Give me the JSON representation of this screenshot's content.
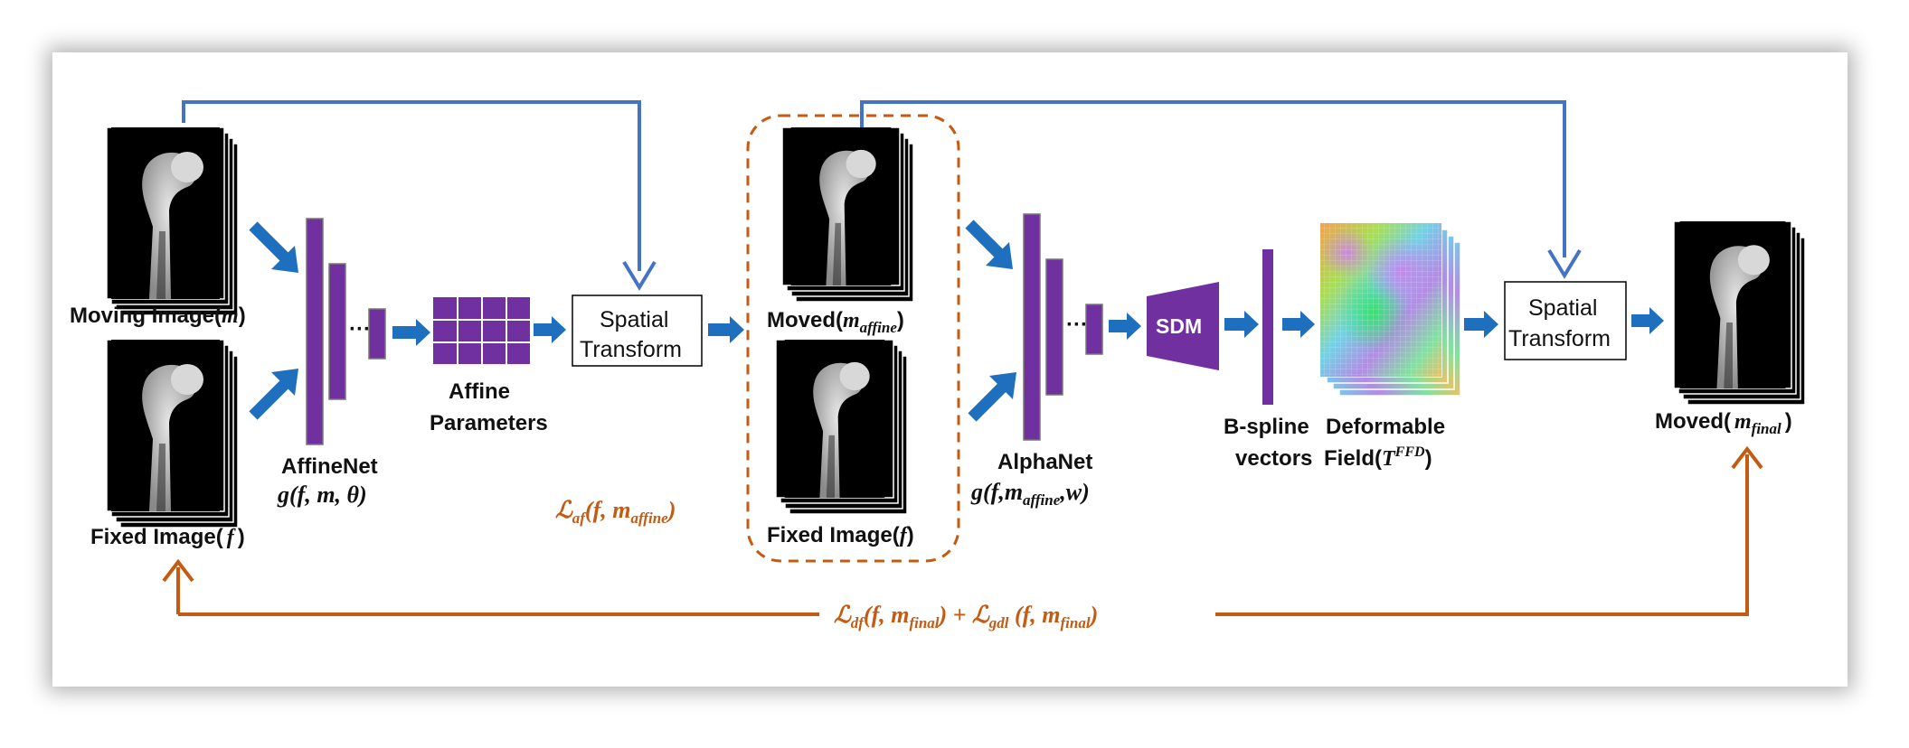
{
  "labels": {
    "moving_image": "Moving Image(",
    "moving_var": "m",
    "fixed_image": "Fixed Image(",
    "fixed_var": "f",
    "affinenet": "AffineNet",
    "affinenet_fn": "g(f, m, θ)",
    "affine_params_line1": "Affine",
    "affine_params_line2": "Parameters",
    "spatial_transform_line1": "Spatial",
    "spatial_transform_line2": "Transform",
    "moved_affine": "Moved(",
    "moved_affine_var": "m",
    "moved_affine_sub": "affine",
    "fixed_image_2": "Fixed Image(",
    "fixed_var_2": "f",
    "alphanet": "AlphaNet",
    "alphanet_fn_prefix": "g(f,m",
    "alphanet_fn_sub": "affine",
    "alphanet_fn_suffix": ",w)",
    "sdm": "SDM",
    "bspline_line1": "B-spline",
    "bspline_line2": "vectors",
    "deformable_line1": "Deformable",
    "deformable_line2": "Field(",
    "deformable_var": "T",
    "deformable_sup": "FFD",
    "moved_final": "Moved(",
    "moved_final_var": "m",
    "moved_final_sub": "final",
    "ellipsis": "···"
  },
  "losses": {
    "affine_loss": "ℒaf(f, maffine)",
    "affine_loss_L": "ℒ",
    "affine_loss_sub": "af",
    "affine_loss_args_a": "(f, m",
    "affine_loss_args_sub": "affine",
    "affine_loss_args_b": ")",
    "final_loss_L1": "ℒ",
    "final_loss_sub1": "df",
    "final_loss_args1a": "(f, m",
    "final_loss_args1_sub": "final",
    "final_loss_args1b": ") + ",
    "final_loss_L2": "ℒ",
    "final_loss_sub2": "gdl",
    "final_loss_args2a": " (f, m",
    "final_loss_args2_sub": "final",
    "final_loss_args2b": ")"
  },
  "colors": {
    "blue_arrow": "#1f6fbf",
    "skip_line": "#4472c4",
    "orange": "#c55a11",
    "purple": "#7030a0",
    "purple_dark": "#5b2383"
  }
}
